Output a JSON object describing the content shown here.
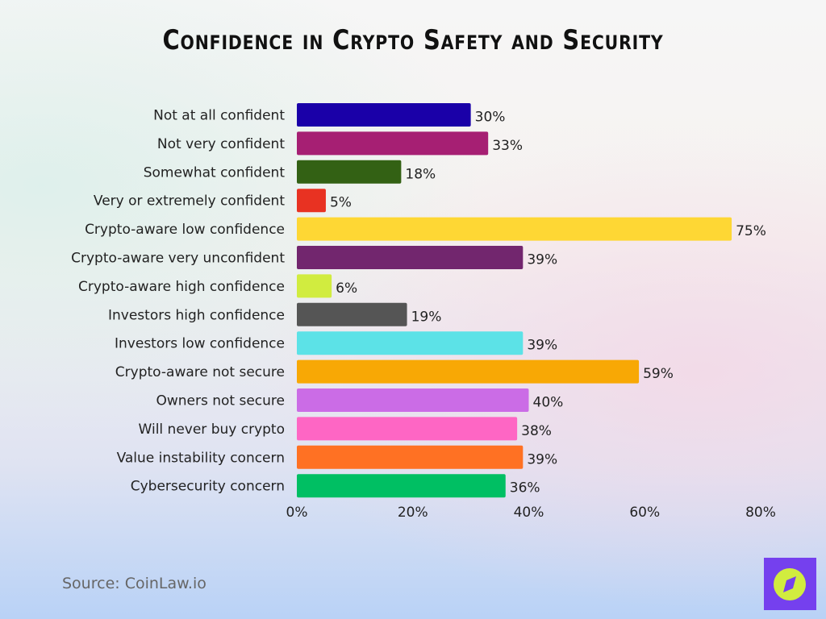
{
  "chart_data": {
    "type": "bar",
    "orientation": "horizontal",
    "title": "Confidence in Crypto Safety and Security",
    "categories": [
      "Not at all confident",
      "Not very confident",
      "Somewhat confident",
      "Very or extremely confident",
      "Crypto-aware low confidence",
      "Crypto-aware very unconfident",
      "Crypto-aware high confidence",
      "Investors high confidence",
      "Investors low confidence",
      "Crypto-aware not secure",
      "Owners not secure",
      "Will never buy crypto",
      "Value instability concern",
      "Cybersecurity concern"
    ],
    "values": [
      30,
      33,
      18,
      5,
      75,
      39,
      6,
      19,
      39,
      59,
      40,
      38,
      39,
      36
    ],
    "value_labels": [
      "30%",
      "33%",
      "18%",
      "5%",
      "75%",
      "39%",
      "6%",
      "19%",
      "39%",
      "59%",
      "40%",
      "38%",
      "39%",
      "36%"
    ],
    "colors": [
      "#1a00a8",
      "#a61f73",
      "#336114",
      "#e83222",
      "#fed734",
      "#72266e",
      "#d1ec3f",
      "#555555",
      "#5ce2e7",
      "#f8a805",
      "#cb6ce6",
      "#fe66c4",
      "#ff7123",
      "#00bf63"
    ],
    "xlim": [
      0,
      80
    ],
    "xticks": [
      "0%",
      "20%",
      "40%",
      "60%",
      "80%"
    ],
    "xtick_values": [
      0,
      20,
      40,
      60,
      80
    ],
    "xlabel": "",
    "ylabel": "",
    "grid": false,
    "legend": "none"
  },
  "source": "Source: CoinLaw.io",
  "logo": {
    "icon": "compass-icon",
    "bg": "#7540ee",
    "fg": "#d1ec3f"
  }
}
